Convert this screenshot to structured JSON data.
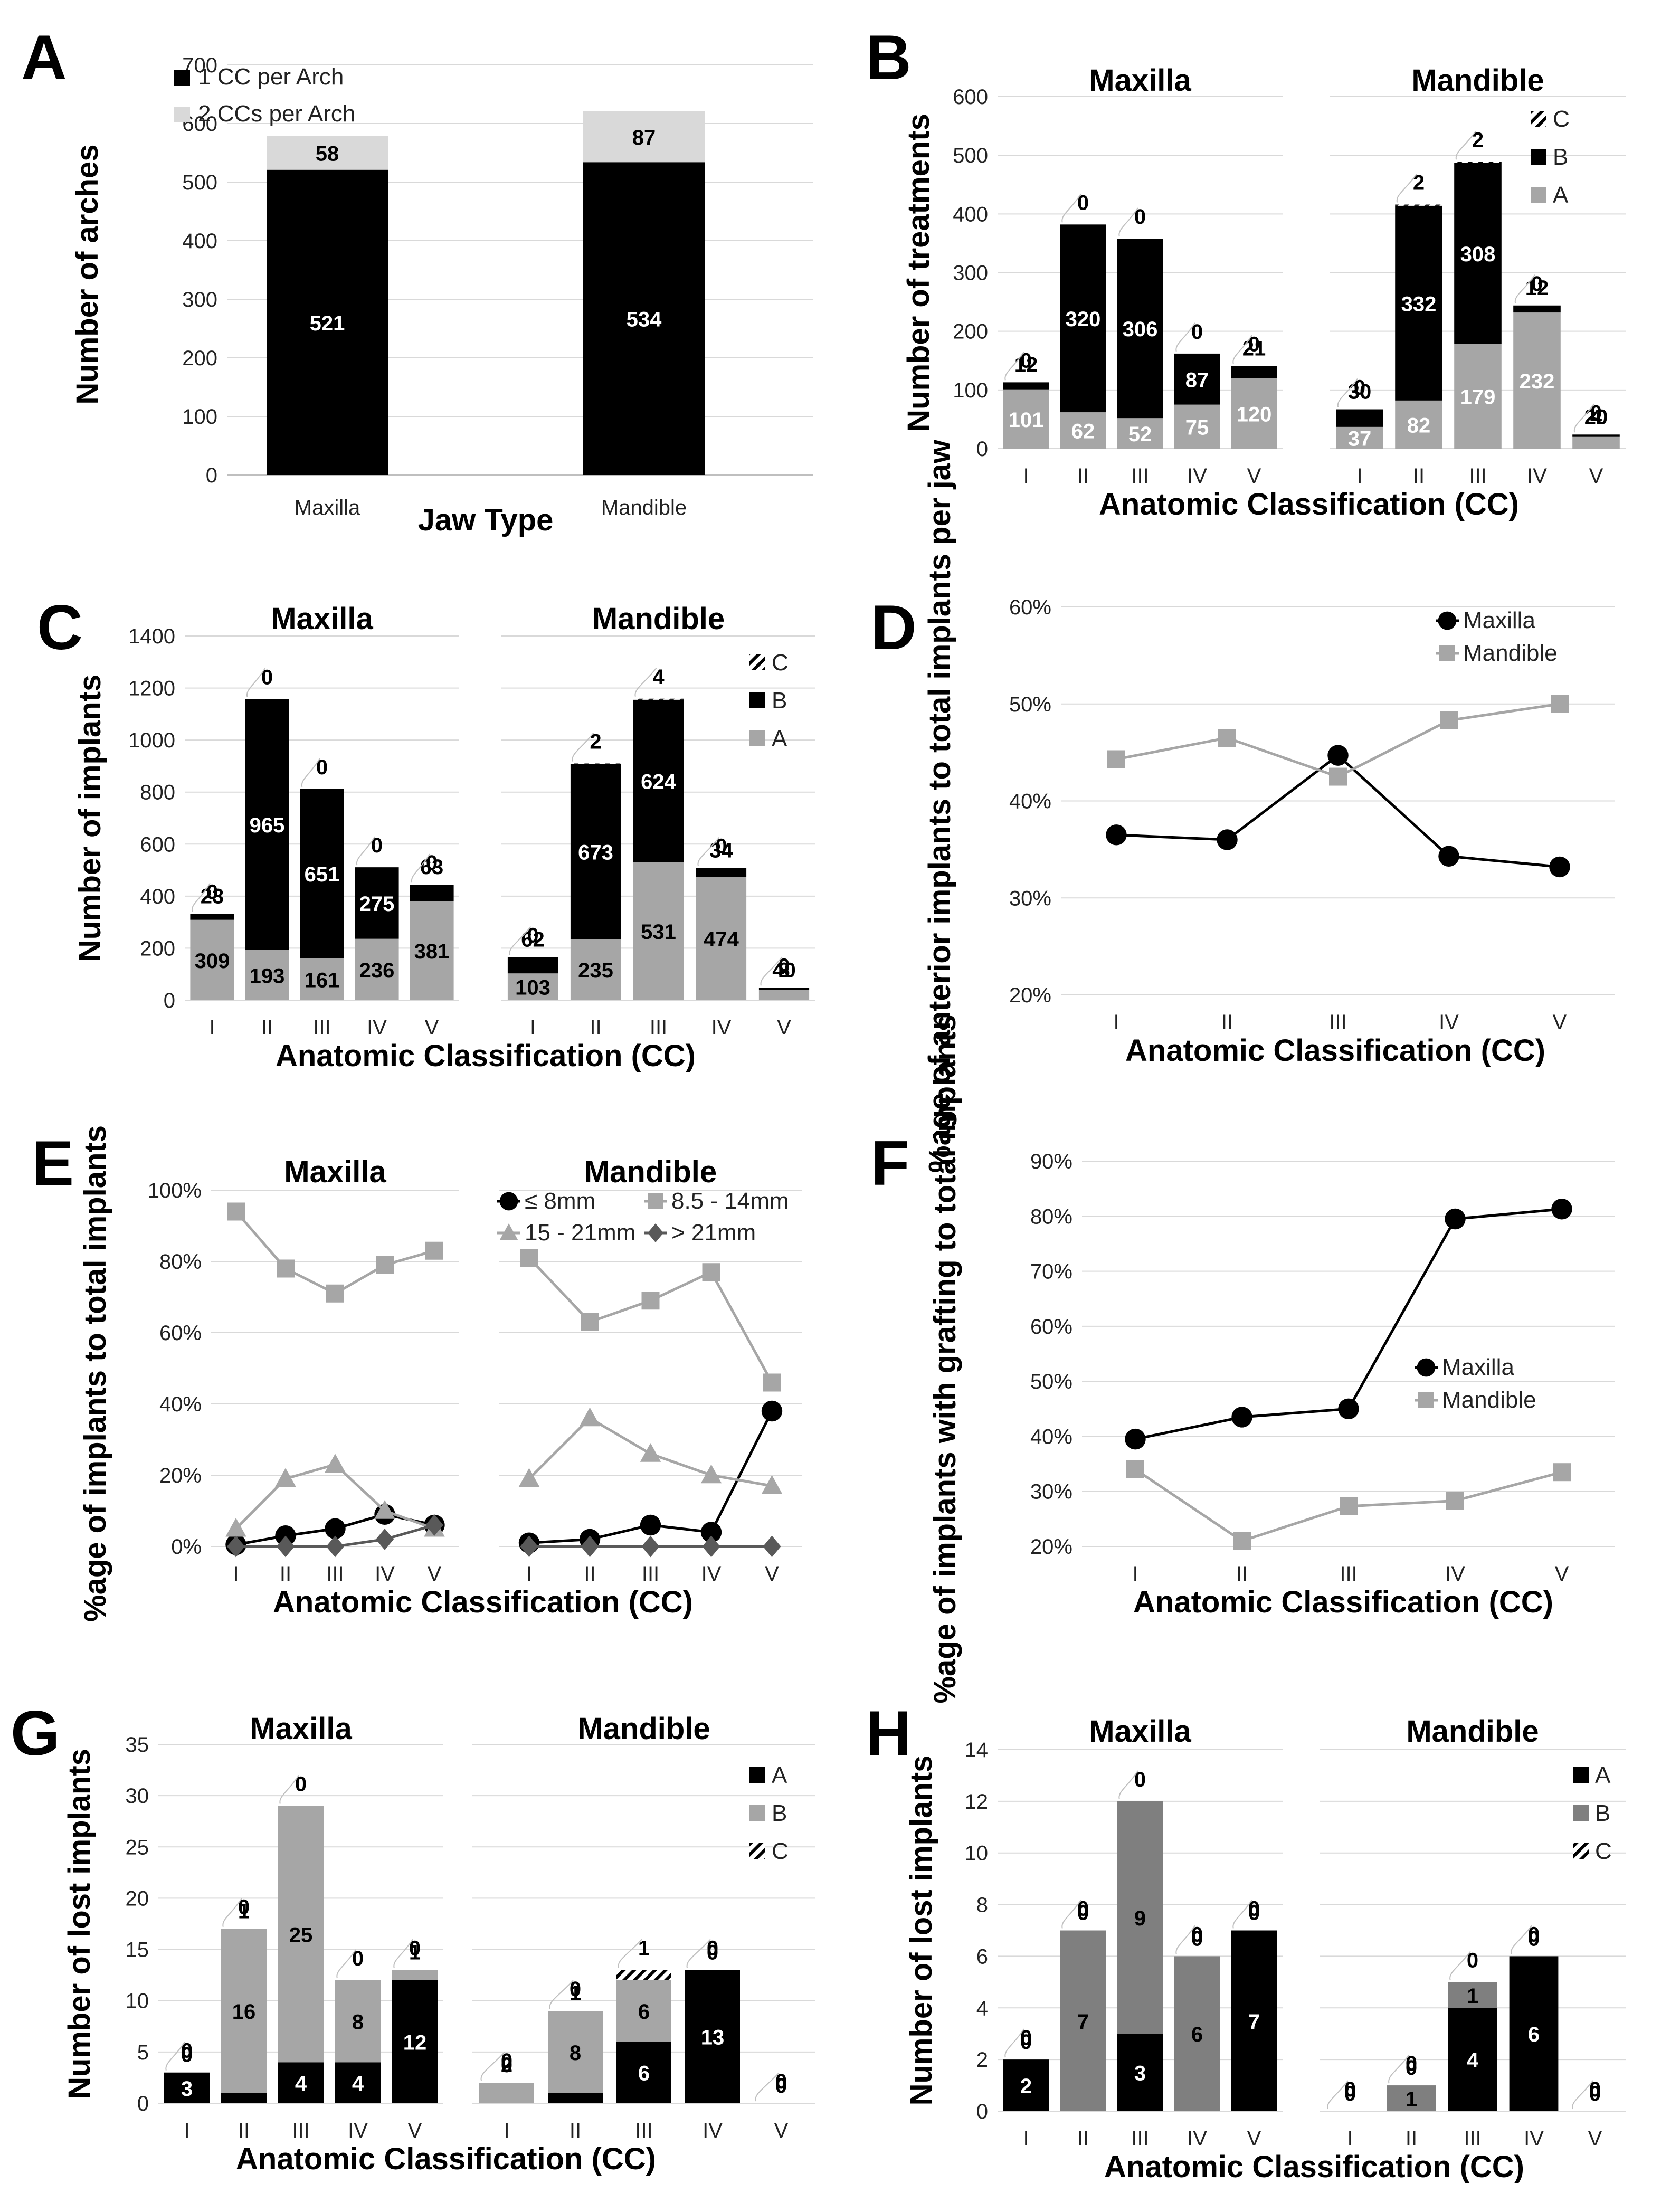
{
  "figure": {
    "panel_labels": [
      "A",
      "B",
      "C",
      "D",
      "E",
      "F",
      "G",
      "H"
    ]
  },
  "colors": {
    "black": "#000000",
    "gray": "#a6a6a6",
    "light": "#d9d9d9",
    "dark_gray": "#7f7f7f",
    "grid": "#d9d9d9"
  },
  "chart_data": [
    {
      "id": "A",
      "type": "bar",
      "stacked": true,
      "ylabel": "Number of arches",
      "xlabel": "Jaw Type",
      "ylim": [
        0,
        700
      ],
      "yticks": [
        0,
        100,
        200,
        300,
        400,
        500,
        600,
        700
      ],
      "categories": [
        "Maxilla",
        "Mandible"
      ],
      "series": [
        {
          "name": "1 CC per Arch",
          "color": "#000000",
          "values": [
            521,
            534
          ],
          "labels": [
            "521",
            "534"
          ]
        },
        {
          "name": "2 CCs per Arch",
          "color": "#d9d9d9",
          "values": [
            58,
            87
          ],
          "labels": [
            "58",
            "87"
          ]
        }
      ],
      "legend": "top-left"
    },
    {
      "id": "B",
      "type": "bar",
      "stacked": true,
      "ylabel": "Number of treatments",
      "xlabel": "Anatomic Classification (CC)",
      "ylim": [
        0,
        600
      ],
      "yticks": [
        0,
        100,
        200,
        300,
        400,
        500,
        600
      ],
      "groups": [
        {
          "title": "Maxilla",
          "categories": [
            "I",
            "II",
            "III",
            "IV",
            "V"
          ],
          "A": [
            101,
            62,
            52,
            75,
            120
          ],
          "B": [
            12,
            320,
            306,
            87,
            21
          ],
          "C": [
            0,
            0,
            0,
            0,
            0
          ],
          "labels": {
            "A": [
              "101",
              "62",
              "52",
              "75",
              "120"
            ],
            "B": [
              "12",
              "320",
              "306",
              "87",
              "21"
            ],
            "C": [
              "0",
              "0",
              "0",
              "0",
              "0"
            ]
          }
        },
        {
          "title": "Mandible",
          "categories": [
            "I",
            "II",
            "III",
            "IV",
            "V"
          ],
          "A": [
            37,
            82,
            179,
            232,
            20
          ],
          "B": [
            30,
            332,
            308,
            12,
            4
          ],
          "C": [
            0,
            2,
            2,
            0,
            0
          ],
          "labels": {
            "A": [
              "37",
              "82",
              "179",
              "232",
              "20"
            ],
            "B": [
              "30",
              "332",
              "308",
              "12",
              "4"
            ],
            "C": [
              "0",
              "2",
              "2",
              "0",
              "0"
            ]
          }
        }
      ],
      "legend": [
        "C",
        "B",
        "A"
      ]
    },
    {
      "id": "C",
      "type": "bar",
      "stacked": true,
      "ylabel": "Number of implants",
      "xlabel": "Anatomic Classification (CC)",
      "ylim": [
        0,
        1400
      ],
      "yticks": [
        0,
        200,
        400,
        600,
        800,
        1000,
        1200,
        1400
      ],
      "groups": [
        {
          "title": "Maxilla",
          "categories": [
            "I",
            "II",
            "III",
            "IV",
            "V"
          ],
          "A": [
            309,
            193,
            161,
            236,
            381
          ],
          "B": [
            23,
            965,
            651,
            275,
            63
          ],
          "C": [
            0,
            0,
            0,
            0,
            0
          ],
          "labels": {
            "A": [
              "309",
              "193",
              "161",
              "236",
              "381"
            ],
            "B": [
              "23",
              "965",
              "651",
              "275",
              "63"
            ],
            "C": [
              "0",
              "0",
              "0",
              "0",
              "0"
            ]
          }
        },
        {
          "title": "Mandible",
          "categories": [
            "I",
            "II",
            "III",
            "IV",
            "V"
          ],
          "A": [
            103,
            235,
            531,
            474,
            40
          ],
          "B": [
            62,
            673,
            624,
            34,
            8
          ],
          "C": [
            0,
            2,
            4,
            0,
            0
          ],
          "labels": {
            "A": [
              "103",
              "235",
              "531",
              "474",
              "40"
            ],
            "B": [
              "62",
              "673",
              "624",
              "34",
              "8"
            ],
            "C": [
              "0",
              "2",
              "4",
              "0",
              "0"
            ]
          }
        }
      ],
      "legend": [
        "C",
        "B",
        "A"
      ]
    },
    {
      "id": "D",
      "type": "line",
      "ylabel": "%age of anterior implants to total implants per jaw",
      "xlabel": "Anatomic Classification (CC)",
      "ylim": [
        20,
        60
      ],
      "yticks": [
        "20%",
        "30%",
        "40%",
        "50%",
        "60%"
      ],
      "categories": [
        "I",
        "II",
        "III",
        "IV",
        "V"
      ],
      "series": [
        {
          "name": "Maxilla",
          "color": "#000000",
          "marker": "circle",
          "values": [
            36.5,
            36,
            44.7,
            34.3,
            33.2
          ]
        },
        {
          "name": "Mandible",
          "color": "#a6a6a6",
          "marker": "square",
          "values": [
            44.3,
            46.5,
            42.5,
            48.3,
            50
          ]
        }
      ]
    },
    {
      "id": "E",
      "type": "line",
      "ylabel": "%age of implants to total implants",
      "xlabel": "Anatomic Classification (CC)",
      "ylim": [
        0,
        100
      ],
      "yticks": [
        "0%",
        "20%",
        "40%",
        "60%",
        "80%",
        "100%"
      ],
      "groups": [
        {
          "title": "Maxilla",
          "categories": [
            "I",
            "II",
            "III",
            "IV",
            "V"
          ]
        },
        {
          "title": "Mandible",
          "categories": [
            "I",
            "II",
            "III",
            "IV",
            "V"
          ]
        }
      ],
      "series": [
        {
          "name": "≤ 8mm",
          "color": "#000000",
          "marker": "circle",
          "values": [
            [
              0.5,
              3,
              5,
              9,
              6
            ],
            [
              1,
              2,
              6,
              4,
              38
            ]
          ]
        },
        {
          "name": "8.5 - 14mm",
          "color": "#a6a6a6",
          "marker": "square",
          "values": [
            [
              94,
              78,
              71,
              79,
              83
            ],
            [
              81,
              63,
              69,
              77,
              46
            ]
          ]
        },
        {
          "name": "15 - 21mm",
          "color": "#a6a6a6",
          "marker": "triangle",
          "values": [
            [
              5,
              19,
              23,
              10,
              5
            ],
            [
              19,
              36,
              26,
              20,
              17
            ]
          ]
        },
        {
          "name": "> 21mm",
          "color": "#595959",
          "marker": "diamond",
          "values": [
            [
              0,
              0,
              0,
              2,
              6
            ],
            [
              0,
              0,
              0,
              0,
              0
            ]
          ]
        }
      ]
    },
    {
      "id": "F",
      "type": "line",
      "ylabel": "%age of implants with grafting to total implants",
      "xlabel": "Anatomic Classification (CC)",
      "ylim": [
        20,
        90
      ],
      "yticks": [
        "20%",
        "30%",
        "40%",
        "50%",
        "60%",
        "70%",
        "80%",
        "90%"
      ],
      "categories": [
        "I",
        "II",
        "III",
        "IV",
        "V"
      ],
      "series": [
        {
          "name": "Maxilla",
          "color": "#000000",
          "marker": "circle",
          "values": [
            39.5,
            43.5,
            45,
            79.5,
            81.3
          ]
        },
        {
          "name": "Mandible",
          "color": "#a6a6a6",
          "marker": "square",
          "values": [
            34,
            21,
            27.3,
            28.3,
            33.5
          ]
        }
      ]
    },
    {
      "id": "G",
      "type": "bar",
      "stacked": true,
      "ylabel": "Number of lost implants",
      "xlabel": "Anatomic Classification (CC)",
      "ylim": [
        0,
        35
      ],
      "yticks": [
        0,
        5,
        10,
        15,
        20,
        25,
        30,
        35
      ],
      "groups": [
        {
          "title": "Maxilla",
          "categories": [
            "I",
            "II",
            "III",
            "IV",
            "V"
          ],
          "A": [
            3,
            1,
            4,
            4,
            12
          ],
          "B": [
            0,
            16,
            25,
            8,
            1
          ],
          "C": [
            0,
            0,
            0,
            0,
            0
          ],
          "labels": {
            "A": [
              "3",
              "1",
              "4",
              "4",
              "12"
            ],
            "B": [
              "0",
              "16",
              "25",
              "8",
              "1"
            ],
            "C": [
              "0",
              "0",
              "0",
              "0",
              "0"
            ]
          }
        },
        {
          "title": "Mandible",
          "categories": [
            "I",
            "II",
            "III",
            "IV",
            "V"
          ],
          "A": [
            0,
            1,
            6,
            13,
            0
          ],
          "B": [
            2,
            8,
            6,
            0,
            0
          ],
          "C": [
            0,
            0,
            1,
            0,
            0
          ],
          "labels": {
            "A": [
              "0",
              "1",
              "6",
              "13",
              "0"
            ],
            "B": [
              "2",
              "8",
              "6",
              "0",
              "0"
            ],
            "C": [
              "0",
              "0",
              "1",
              "0",
              "0"
            ]
          }
        }
      ],
      "legend": [
        "A",
        "B",
        "C"
      ]
    },
    {
      "id": "H",
      "type": "bar",
      "stacked": true,
      "ylabel": "Number of lost implants",
      "xlabel": "Anatomic Classification (CC)",
      "ylim": [
        0,
        14
      ],
      "yticks": [
        0,
        2,
        4,
        6,
        8,
        10,
        12,
        14
      ],
      "groups": [
        {
          "title": "Maxilla",
          "categories": [
            "I",
            "II",
            "III",
            "IV",
            "V"
          ],
          "A": [
            2,
            0,
            3,
            0,
            7
          ],
          "B": [
            0,
            7,
            9,
            6,
            0
          ],
          "C": [
            0,
            0,
            0,
            0,
            0
          ],
          "labels": {
            "A": [
              "2",
              "0",
              "3",
              "0",
              "7"
            ],
            "B": [
              "0",
              "7",
              "9",
              "6",
              "0"
            ],
            "C": [
              "0",
              "0",
              "0",
              "0",
              "0"
            ]
          }
        },
        {
          "title": "Mandible",
          "categories": [
            "I",
            "II",
            "III",
            "IV",
            "V"
          ],
          "A": [
            0,
            0,
            4,
            6,
            0
          ],
          "B": [
            0,
            1,
            1,
            0,
            0
          ],
          "C": [
            0,
            0,
            0,
            0,
            0
          ],
          "labels": {
            "A": [
              "0",
              "0",
              "4",
              "6",
              "0"
            ],
            "B": [
              "0",
              "1",
              "1",
              "0",
              "0"
            ],
            "C": [
              "0",
              "0",
              "0",
              "0",
              "0"
            ]
          }
        }
      ],
      "legend": [
        "A",
        "B",
        "C"
      ]
    }
  ]
}
